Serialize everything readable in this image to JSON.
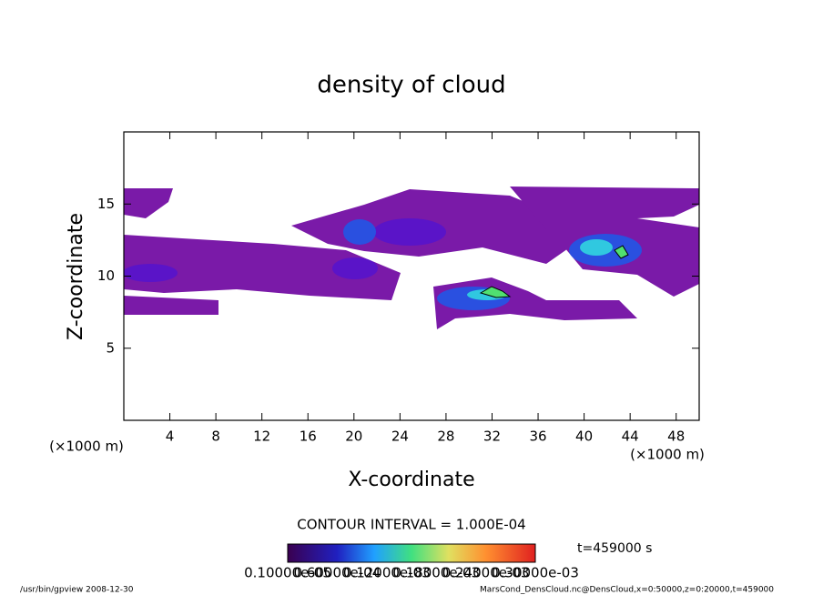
{
  "chart_data": {
    "type": "contour",
    "title": "density of cloud",
    "x_label": "X-coordinate",
    "y_label": "Z-coordinate",
    "x_unit": "(×1000 m)",
    "y_unit": "(×1000 m)",
    "xlim": [
      0,
      50
    ],
    "xticks": [
      4,
      8,
      12,
      16,
      20,
      24,
      28,
      32,
      36,
      40,
      44,
      48
    ],
    "ylim": [
      0,
      20
    ],
    "yticks": [
      5,
      10,
      15
    ],
    "contour_interval": "CONTOUR INTERVAL = 1.000E-04",
    "time_label": "t=459000 s",
    "colorbar_labels": [
      "0.10000e-05",
      "0.60000e-04",
      "0.12000e-03",
      "0.18000e-03",
      "0.24000e-03",
      "0.30000e-03"
    ],
    "footer_left": "/usr/bin/gpview   2008-12-30",
    "footer_right": "MarsCond_DensCloud.nc@DensCloud,x=0:50000,z=0:20000,t=459000"
  }
}
